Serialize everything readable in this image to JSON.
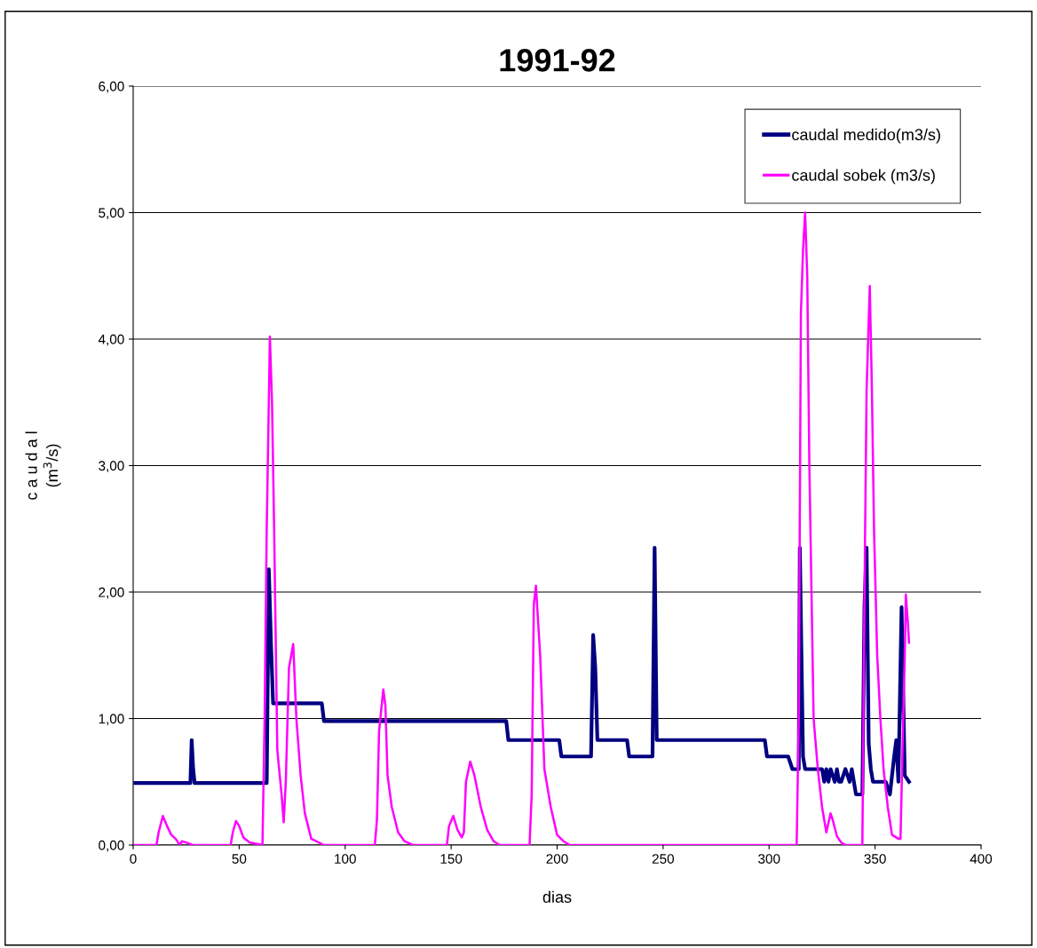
{
  "chart_data": {
    "type": "line",
    "title": "1991-92",
    "xlabel": "dias",
    "ylabel": "c a u d a l\n(m$^{3}$/s)",
    "xlim": [
      0,
      400
    ],
    "xticks": [
      0,
      50,
      100,
      150,
      200,
      250,
      300,
      350,
      400
    ],
    "ylim": [
      0,
      6
    ],
    "yticks": [
      {
        "value": 0,
        "label": "0,00"
      },
      {
        "value": 1,
        "label": "1,00"
      },
      {
        "value": 2,
        "label": "2,00"
      },
      {
        "value": 3,
        "label": "3,00"
      },
      {
        "value": 4,
        "label": "4,00"
      },
      {
        "value": 5,
        "label": "5,00"
      },
      {
        "value": 6,
        "label": "6,00"
      }
    ],
    "grid": "y",
    "legend": "top right",
    "marker": "none",
    "line_style": "solid",
    "series": [
      {
        "name": "caudal medido(m3/s)",
        "color": "#000080",
        "x": [
          1,
          27,
          27.6,
          28.3,
          29,
          63,
          64,
          65,
          66,
          89,
          90,
          176,
          177,
          201,
          202,
          216,
          217,
          218,
          219,
          233,
          234,
          245,
          246,
          247,
          298,
          299,
          309,
          311,
          314,
          314.5,
          316,
          317,
          325,
          326,
          327,
          328,
          329,
          330,
          331,
          332,
          333,
          334,
          336,
          337,
          338,
          339,
          340,
          341,
          342,
          344,
          345,
          346,
          347,
          348,
          349,
          355,
          357,
          359,
          360,
          361,
          362.5,
          364,
          366
        ],
        "values": [
          0.49,
          0.49,
          0.83,
          0.6,
          0.49,
          0.49,
          2.18,
          1.6,
          1.12,
          1.12,
          0.98,
          0.98,
          0.83,
          0.83,
          0.7,
          0.7,
          1.66,
          1.4,
          0.83,
          0.83,
          0.7,
          0.7,
          2.35,
          0.83,
          0.83,
          0.7,
          0.7,
          0.6,
          0.6,
          2.35,
          0.7,
          0.6,
          0.6,
          0.5,
          0.6,
          0.5,
          0.6,
          0.55,
          0.5,
          0.6,
          0.5,
          0.5,
          0.6,
          0.55,
          0.5,
          0.6,
          0.5,
          0.4,
          0.4,
          0.4,
          1.9,
          2.35,
          0.8,
          0.6,
          0.5,
          0.5,
          0.4,
          0.7,
          0.83,
          0.5,
          1.88,
          0.55,
          0.5
        ]
      },
      {
        "name": "caudal sobek (m3/s)",
        "color": "#ff00ff",
        "x": [
          0,
          11,
          12,
          14,
          16,
          18,
          20,
          22,
          23,
          25,
          28,
          46,
          47,
          48.5,
          50,
          52,
          55,
          58,
          61,
          62,
          63,
          64.5,
          65.5,
          66.5,
          68,
          70,
          71,
          72,
          73.5,
          75.5,
          77,
          79,
          81,
          84,
          90,
          114,
          115,
          116,
          118,
          119,
          120,
          122,
          125,
          128,
          132,
          148,
          149,
          151,
          153,
          155,
          156,
          157,
          159,
          161,
          164,
          167,
          170,
          173,
          187,
          188,
          189,
          190,
          192,
          194,
          197,
          200,
          203,
          206,
          313,
          314,
          315,
          316,
          317,
          318,
          319,
          320,
          321,
          323,
          325,
          327,
          329,
          330,
          332,
          334,
          336,
          344,
          345,
          346,
          347.5,
          348.5,
          349.5,
          351,
          352.5,
          354,
          356,
          358,
          361,
          362,
          363,
          364,
          364.5,
          365.5,
          366
        ],
        "values": [
          0,
          0,
          0.1,
          0.23,
          0.15,
          0.08,
          0.05,
          0,
          0.03,
          0.02,
          0,
          0,
          0.1,
          0.19,
          0.15,
          0.06,
          0.02,
          0.01,
          0,
          1.0,
          2.5,
          4.02,
          3.5,
          2.5,
          0.75,
          0.4,
          0.18,
          0.5,
          1.4,
          1.59,
          1.0,
          0.55,
          0.25,
          0.05,
          0,
          0,
          0.2,
          0.9,
          1.23,
          1.1,
          0.55,
          0.3,
          0.1,
          0.03,
          0,
          0,
          0.15,
          0.23,
          0.12,
          0.06,
          0.1,
          0.5,
          0.66,
          0.55,
          0.3,
          0.12,
          0.03,
          0,
          0,
          0.4,
          1.9,
          2.05,
          1.5,
          0.6,
          0.3,
          0.08,
          0.03,
          0,
          0,
          1.0,
          4.2,
          4.7,
          5.0,
          4.5,
          3.0,
          2.0,
          1.0,
          0.6,
          0.3,
          0.1,
          0.25,
          0.2,
          0.07,
          0.02,
          0,
          0,
          2.0,
          3.6,
          4.42,
          3.6,
          2.5,
          1.5,
          1.0,
          0.6,
          0.3,
          0.08,
          0.05,
          0.05,
          0.8,
          1.5,
          1.98,
          1.75,
          1.6
        ]
      }
    ]
  }
}
